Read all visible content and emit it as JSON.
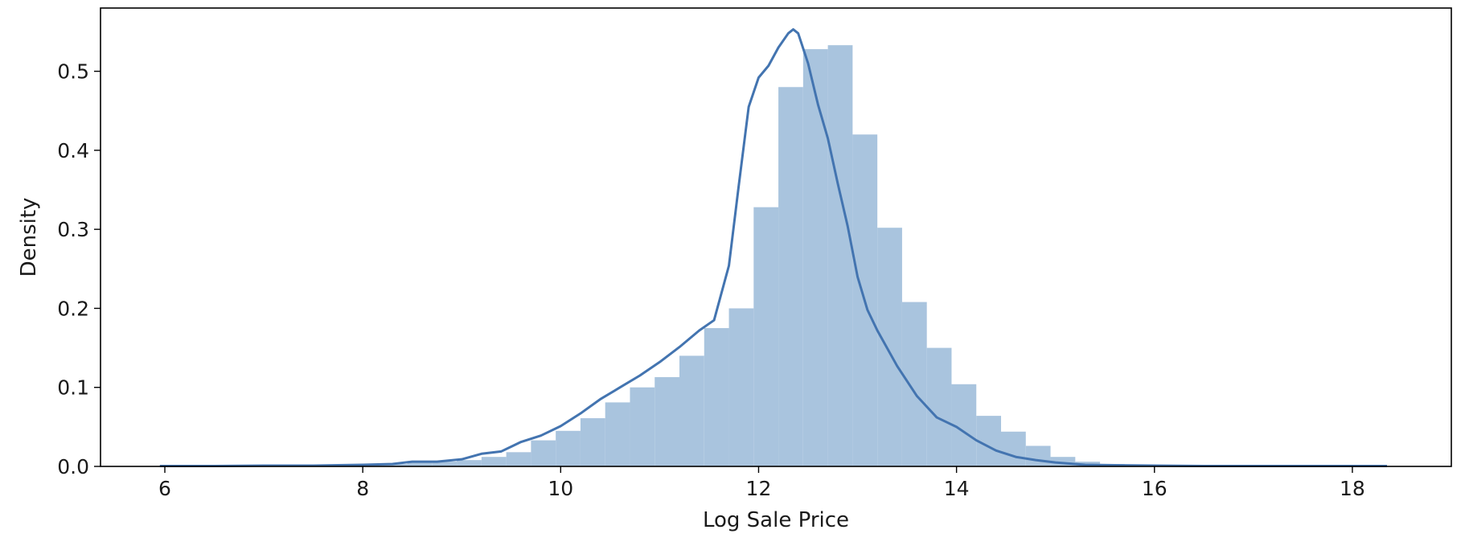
{
  "chart_data": {
    "type": "bar",
    "title": "",
    "xlabel": "Log Sale Price",
    "ylabel": "Density",
    "xlim": [
      5.35,
      19.0
    ],
    "ylim": [
      0.0,
      0.58
    ],
    "xticks": [
      6,
      8,
      10,
      12,
      14,
      16,
      18
    ],
    "xtick_labels": [
      "6",
      "8",
      "10",
      "12",
      "14",
      "16",
      "18"
    ],
    "yticks": [
      0.0,
      0.1,
      0.2,
      0.3,
      0.4,
      0.5
    ],
    "ytick_labels": [
      "0.0",
      "0.1",
      "0.2",
      "0.3",
      "0.4",
      "0.5"
    ],
    "grid": false,
    "legend": "none",
    "series": [
      {
        "kind": "histogram",
        "bin_edges": [
          5.95,
          6.2,
          6.45,
          6.7,
          6.95,
          7.2,
          7.45,
          7.7,
          7.95,
          8.2,
          8.45,
          8.7,
          8.95,
          9.2,
          9.45,
          9.7,
          9.95,
          10.2,
          10.45,
          10.7,
          10.95,
          11.2,
          11.45,
          11.7,
          11.95,
          12.2,
          12.45,
          12.7,
          12.95,
          13.2,
          13.45,
          13.7,
          13.95,
          14.2,
          14.45,
          14.7,
          14.95,
          15.2,
          15.45,
          15.7,
          15.95,
          16.2,
          16.45,
          16.7,
          16.95,
          17.2,
          17.45,
          17.7,
          17.95,
          18.2
        ],
        "values": [
          0.0005,
          0.0005,
          0.001,
          0.001,
          0.001,
          0.001,
          0.001,
          0.0015,
          0.002,
          0.003,
          0.005,
          0.006,
          0.008,
          0.012,
          0.018,
          0.033,
          0.045,
          0.061,
          0.081,
          0.1,
          0.113,
          0.14,
          0.175,
          0.2,
          0.328,
          0.48,
          0.528,
          0.533,
          0.42,
          0.302,
          0.208,
          0.15,
          0.104,
          0.064,
          0.044,
          0.026,
          0.012,
          0.006,
          0.003,
          0.0015,
          0.001,
          0.001,
          0.0005,
          0.0005,
          0.0005,
          0.0005,
          0.0005,
          0.0005,
          0.0005
        ]
      },
      {
        "kind": "kde",
        "x": [
          5.95,
          6.5,
          7.0,
          7.5,
          8.0,
          8.3,
          8.5,
          8.75,
          9.0,
          9.2,
          9.4,
          9.6,
          9.8,
          10.0,
          10.2,
          10.4,
          10.6,
          10.8,
          11.0,
          11.2,
          11.4,
          11.55,
          11.7,
          11.8,
          11.9,
          12.0,
          12.1,
          12.2,
          12.3,
          12.35,
          12.4,
          12.5,
          12.6,
          12.7,
          12.8,
          12.9,
          13.0,
          13.1,
          13.2,
          13.4,
          13.6,
          13.8,
          14.0,
          14.2,
          14.4,
          14.6,
          14.8,
          15.0,
          15.3,
          15.6,
          16.0,
          16.5,
          17.0,
          17.5,
          18.0,
          18.35
        ],
        "y": [
          0.0005,
          0.0005,
          0.001,
          0.001,
          0.002,
          0.003,
          0.006,
          0.006,
          0.009,
          0.016,
          0.019,
          0.031,
          0.039,
          0.051,
          0.067,
          0.085,
          0.1,
          0.115,
          0.132,
          0.151,
          0.172,
          0.185,
          0.254,
          0.356,
          0.455,
          0.492,
          0.507,
          0.53,
          0.548,
          0.553,
          0.548,
          0.51,
          0.458,
          0.415,
          0.358,
          0.304,
          0.24,
          0.198,
          0.172,
          0.127,
          0.089,
          0.062,
          0.05,
          0.033,
          0.02,
          0.012,
          0.008,
          0.005,
          0.002,
          0.0015,
          0.001,
          0.0005,
          0.0005,
          0.0005,
          0.0005,
          0.0005
        ]
      }
    ],
    "colors": {
      "bars": "#a9c4de",
      "kde_line": "#4374b0",
      "axes": "#000000"
    }
  }
}
